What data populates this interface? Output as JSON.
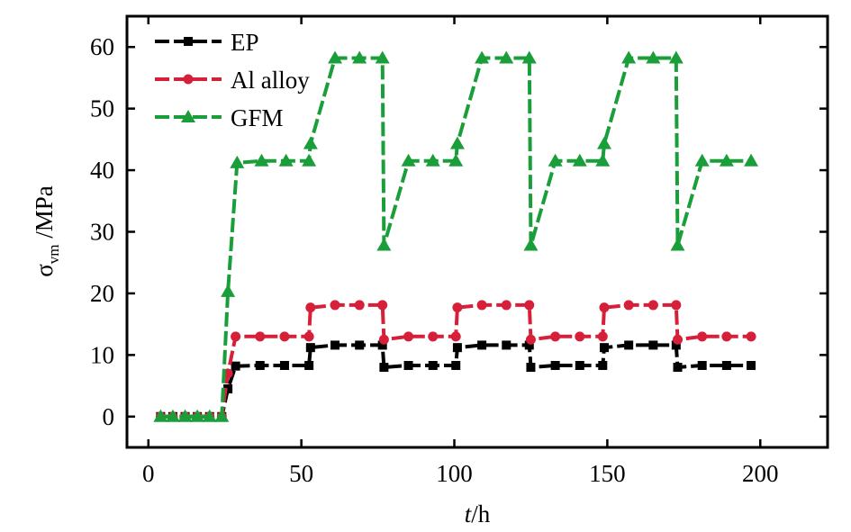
{
  "chart_data": {
    "type": "line",
    "xlabel": {
      "var": "t",
      "unit": "/h"
    },
    "ylabel": {
      "var": "σ",
      "sub": "vm",
      "unit": " /MPa"
    },
    "xlim": [
      -7,
      222
    ],
    "ylim": [
      -5,
      65
    ],
    "xticks": [
      0,
      50,
      100,
      150,
      200
    ],
    "yticks": [
      0,
      10,
      20,
      30,
      40,
      50,
      60
    ],
    "grid": false,
    "legend_position": "top-left",
    "series": [
      {
        "name": "EP",
        "color": "#000000",
        "marker": "square",
        "x": [
          4,
          8,
          12,
          16,
          20,
          24,
          26,
          28.5,
          36.5,
          44.5,
          52.5,
          53,
          61,
          69,
          76.5,
          77,
          85,
          93,
          100.5,
          101,
          109,
          117,
          124.5,
          125,
          133,
          141,
          148.5,
          149,
          157,
          165,
          172.5,
          173,
          181,
          189,
          197
        ],
        "y": [
          0,
          0,
          0,
          0,
          0,
          0,
          4.5,
          8.2,
          8.3,
          8.3,
          8.3,
          11.2,
          11.6,
          11.6,
          11.6,
          8.0,
          8.3,
          8.3,
          8.3,
          11.2,
          11.6,
          11.6,
          11.6,
          8.0,
          8.3,
          8.3,
          8.3,
          11.2,
          11.6,
          11.6,
          11.6,
          8.0,
          8.3,
          8.3,
          8.3
        ]
      },
      {
        "name": "Al alloy",
        "color": "#d6203a",
        "marker": "circle",
        "x": [
          4,
          8,
          12,
          16,
          20,
          24,
          26,
          28.5,
          36.5,
          44.5,
          52.5,
          53,
          61,
          69,
          76.5,
          77,
          85,
          93,
          100.5,
          101,
          109,
          117,
          124.5,
          125,
          133,
          141,
          148.5,
          149,
          157,
          165,
          172.5,
          173,
          181,
          189,
          197
        ],
        "y": [
          0,
          0,
          0,
          0,
          0,
          0,
          7.0,
          13.0,
          13.0,
          13.0,
          13.0,
          17.7,
          18.1,
          18.1,
          18.1,
          12.5,
          13.0,
          13.0,
          13.0,
          17.7,
          18.1,
          18.1,
          18.1,
          12.5,
          13.0,
          13.0,
          13.0,
          17.7,
          18.1,
          18.1,
          18.1,
          12.5,
          13.0,
          13.0,
          13.0
        ]
      },
      {
        "name": "GFM",
        "color": "#1a9e3a",
        "marker": "triangle",
        "x": [
          4,
          8,
          12,
          16,
          20,
          24,
          26,
          29,
          37,
          45,
          52.5,
          53,
          61,
          69,
          76.5,
          77,
          85,
          93,
          100.5,
          101,
          109,
          117,
          124.5,
          125,
          133,
          141,
          148.5,
          149,
          157,
          165,
          172.5,
          173,
          181,
          189,
          197
        ],
        "y": [
          0,
          0,
          0,
          0,
          0,
          0,
          20.3,
          41.2,
          41.5,
          41.5,
          41.5,
          44.3,
          58.2,
          58.2,
          58.2,
          27.8,
          41.5,
          41.5,
          41.5,
          44.3,
          58.2,
          58.2,
          58.2,
          27.8,
          41.5,
          41.5,
          41.5,
          44.3,
          58.2,
          58.2,
          58.2,
          27.8,
          41.5,
          41.5,
          41.5
        ]
      }
    ]
  }
}
